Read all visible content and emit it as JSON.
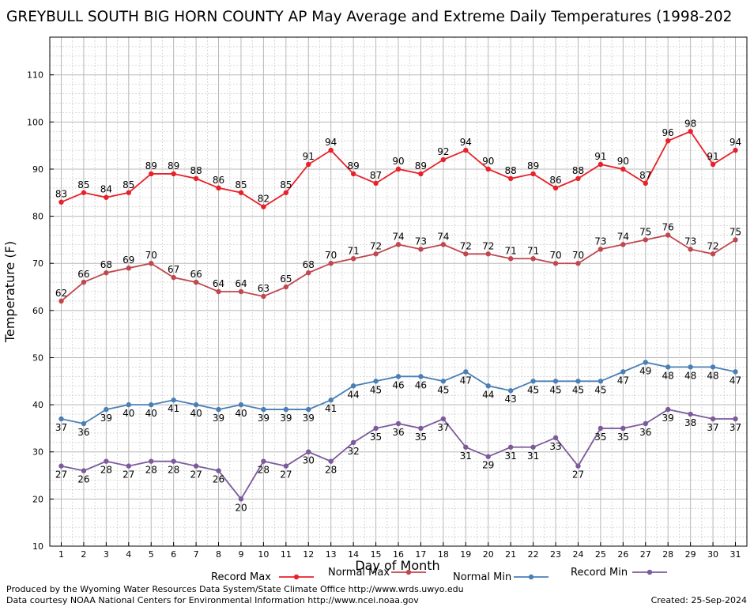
{
  "footer": {
    "produced_by": "Produced by the Wyoming Water Resources Data System/State Climate Office http://www.wrds.uwyo.edu",
    "courtesy": "Data courtesy NOAA National Centers for Environmental Information http://www.ncei.noaa.gov",
    "created": "Created: 25-Sep-2024"
  },
  "chart_data": {
    "type": "line",
    "title": "GREYBULL SOUTH BIG HORN COUNTY AP May Average and Extreme Daily Temperatures (1998-202",
    "xlabel": "Day of Month",
    "ylabel": "Temperature (F)",
    "ylim": [
      10,
      118
    ],
    "y_ticks": [
      10,
      20,
      30,
      40,
      50,
      60,
      70,
      80,
      90,
      100,
      110
    ],
    "grid": true,
    "legend_position": "bottom",
    "x": [
      1,
      2,
      3,
      4,
      5,
      6,
      7,
      8,
      9,
      10,
      11,
      12,
      13,
      14,
      15,
      16,
      17,
      18,
      19,
      20,
      21,
      22,
      23,
      24,
      25,
      26,
      27,
      28,
      29,
      30,
      31
    ],
    "series": [
      {
        "name": "Record Max",
        "color": "#e8202a",
        "label_position": "above",
        "values": [
          83,
          85,
          84,
          85,
          89,
          89,
          88,
          86,
          85,
          82,
          85,
          91,
          94,
          89,
          87,
          90,
          89,
          92,
          94,
          90,
          88,
          89,
          86,
          88,
          91,
          90,
          87,
          96,
          98,
          91,
          94
        ]
      },
      {
        "name": "Normal Max",
        "color": "#c0474e",
        "label_position": "above",
        "values": [
          62,
          66,
          68,
          69,
          70,
          67,
          66,
          64,
          64,
          63,
          65,
          68,
          70,
          71,
          72,
          74,
          73,
          74,
          72,
          72,
          71,
          71,
          70,
          70,
          73,
          74,
          75,
          76,
          73,
          72,
          75
        ]
      },
      {
        "name": "Normal Min",
        "color": "#4a7fb5",
        "label_position": "below",
        "values": [
          37,
          36,
          39,
          40,
          40,
          41,
          40,
          39,
          40,
          39,
          39,
          39,
          41,
          44,
          45,
          46,
          46,
          45,
          47,
          44,
          43,
          45,
          45,
          45,
          45,
          47,
          49,
          48,
          48,
          48,
          47
        ]
      },
      {
        "name": "Record Min",
        "color": "#7d5a9c",
        "label_position": "below",
        "values": [
          27,
          26,
          28,
          27,
          28,
          28,
          27,
          26,
          20,
          28,
          27,
          30,
          28,
          32,
          35,
          36,
          35,
          37,
          31,
          29,
          31,
          31,
          33,
          27,
          35,
          35,
          36,
          39,
          38,
          37,
          37
        ]
      }
    ]
  }
}
